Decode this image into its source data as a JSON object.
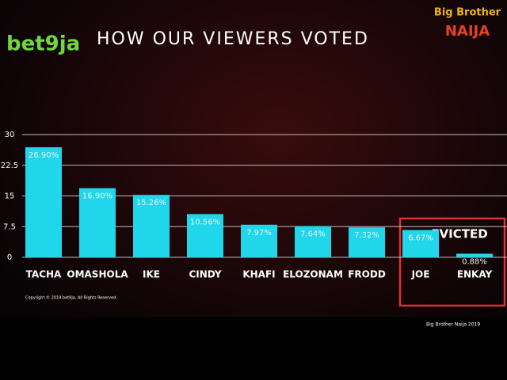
{
  "chart_data": {
    "type": "bar",
    "title": "HOW OUR VIEWERS VOTED",
    "brand": "bet9ja",
    "show_logo": [
      "Big Brother",
      "NAIJA"
    ],
    "categories": [
      "TACHA",
      "OMASHOLA",
      "IKE",
      "CINDY",
      "KHAFI",
      "ELOZONAM",
      "FRODD",
      "JOE",
      "ENKAY"
    ],
    "values": [
      26.9,
      16.9,
      15.26,
      10.56,
      7.97,
      7.64,
      7.32,
      6.67,
      0.88
    ],
    "value_labels": [
      "26.90%",
      "16.90%",
      "15.26%",
      "10.56%",
      "7.97%",
      "7.64%",
      "7.32%",
      "6.67%",
      "0.88%"
    ],
    "color": "#1fd6ea",
    "ylim": [
      0,
      30
    ],
    "yticks": [
      0,
      7.5,
      15,
      22.5,
      30
    ],
    "grid": true,
    "annotation": "EVICTED",
    "footer_left": "Copyright © 2019 bet9ja. All Rights Reserved.",
    "footer_right": "Big Brother Naija 2019"
  }
}
